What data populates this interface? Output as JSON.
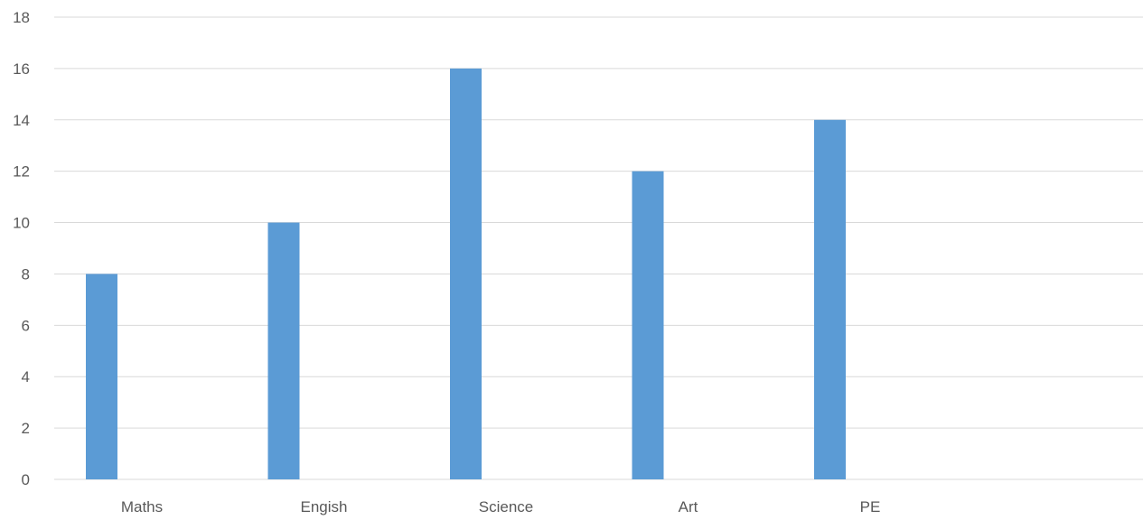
{
  "chart_data": {
    "type": "bar",
    "categories": [
      "Maths",
      "Engish",
      "Science",
      "Art",
      "PE"
    ],
    "series": [
      {
        "values": [
          8,
          10,
          16,
          12,
          14
        ]
      }
    ],
    "xlabel": "",
    "ylabel": "",
    "ylim": [
      0,
      18
    ],
    "yticks": [
      "0",
      "2",
      "4",
      "6",
      "8",
      "10",
      "12",
      "14",
      "16",
      "18"
    ],
    "grid": true,
    "legend": "none",
    "bar_color": "#5b9bd5",
    "grid_color": "#d9d9d9",
    "text_color": "#595959"
  }
}
